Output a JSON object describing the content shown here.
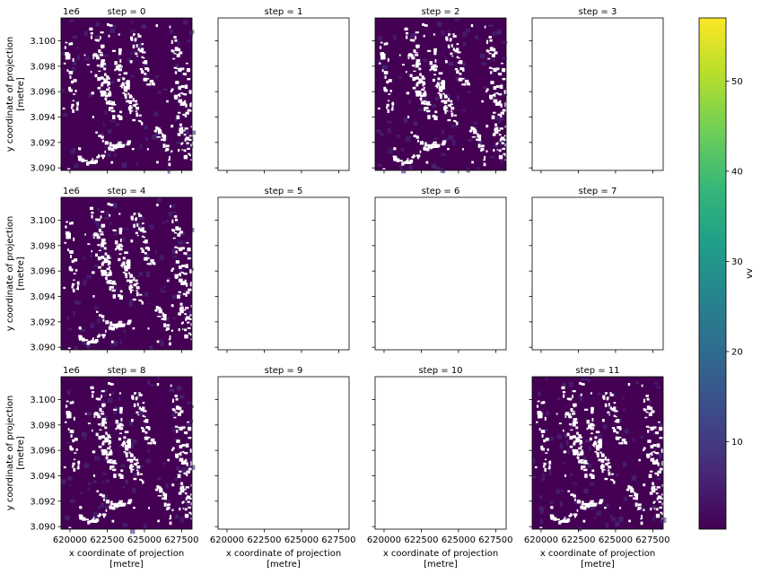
{
  "chart_data": {
    "type": "heatmap",
    "layout": {
      "rows": 3,
      "cols": 4
    },
    "panels": [
      {
        "title": "step = 0",
        "has_data": true
      },
      {
        "title": "step = 1",
        "has_data": false
      },
      {
        "title": "step = 2",
        "has_data": true
      },
      {
        "title": "step = 3",
        "has_data": false
      },
      {
        "title": "step = 4",
        "has_data": true
      },
      {
        "title": "step = 5",
        "has_data": false
      },
      {
        "title": "step = 6",
        "has_data": false
      },
      {
        "title": "step = 7",
        "has_data": false
      },
      {
        "title": "step = 8",
        "has_data": true
      },
      {
        "title": "step = 9",
        "has_data": false
      },
      {
        "title": "step = 10",
        "has_data": false
      },
      {
        "title": "step = 11",
        "has_data": true
      }
    ],
    "xlabel": "x coordinate of projection\n[metre]",
    "ylabel": "y coordinate of projection\n[metre]",
    "x_ticks": [
      620000,
      622500,
      625000,
      627500
    ],
    "x_tick_labels": [
      "620000",
      "622500",
      "625000",
      "627500"
    ],
    "xlim": [
      619400,
      628200
    ],
    "y_ticks": [
      3.09,
      3.092,
      3.094,
      3.096,
      3.098,
      3.1
    ],
    "y_tick_labels": [
      "3.090",
      "3.092",
      "3.094",
      "3.096",
      "3.098",
      "3.100"
    ],
    "ylim": [
      3.0898,
      3.1018
    ],
    "y_offset_label": "1e6",
    "colorbar": {
      "label": "vv",
      "ticks": [
        10,
        20,
        30,
        40,
        50
      ],
      "range": [
        0.3,
        57
      ],
      "colormap": "viridis",
      "colors": [
        "#440154",
        "#482878",
        "#3e4989",
        "#31688e",
        "#26828e",
        "#1f9e89",
        "#35b779",
        "#6ece58",
        "#b5de2b",
        "#fde725"
      ]
    },
    "nodata_color": "#ffffff",
    "background_color": "#440154"
  }
}
